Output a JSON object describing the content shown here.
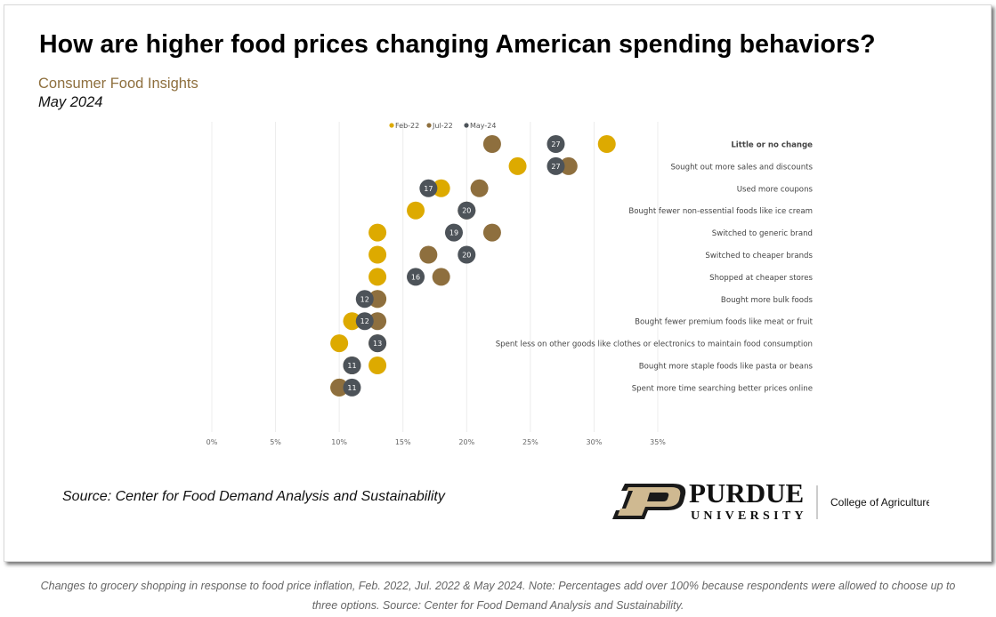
{
  "header": {
    "title": "How are higher food prices changing American spending behaviors?",
    "subtitle": "Consumer Food Insights",
    "date": "May 2024"
  },
  "chart_data": {
    "type": "scatter",
    "orientation": "horizontal-dot-plot",
    "title": "How are higher food prices changing American spending behaviors?",
    "xlabel": "",
    "ylabel": "",
    "xlim": [
      0,
      35
    ],
    "x_ticks": [
      0,
      5,
      10,
      15,
      20,
      25,
      30,
      35
    ],
    "x_tick_labels": [
      "0%",
      "5%",
      "10%",
      "15%",
      "20%",
      "25%",
      "30%",
      "35%"
    ],
    "grid": "vertical",
    "legend_position": "top",
    "categories": [
      "Little or no change",
      "Sought out more sales and discounts",
      "Used more coupons",
      "Bought fewer non-essential foods like ice cream",
      "Switched to generic brand",
      "Switched to cheaper brands",
      "Shopped at cheaper stores",
      "Bought more bulk foods",
      "Bought fewer premium foods like meat or fruit",
      "Spent less on other goods like clothes or electronics to maintain food consumption",
      "Bought more staple foods like pasta or beans",
      "Spent more time searching better prices online"
    ],
    "bold_category_index": 0,
    "series": [
      {
        "name": "Feb-22",
        "color": "#ddaa00",
        "show_labels": false,
        "values": [
          31,
          24,
          18,
          16,
          13,
          13,
          13,
          13,
          11,
          10,
          13,
          10
        ]
      },
      {
        "name": "Jul-22",
        "color": "#8e6f3e",
        "show_labels": false,
        "values": [
          22,
          28,
          21,
          20,
          22,
          17,
          18,
          13,
          13,
          13,
          11,
          10
        ]
      },
      {
        "name": "May-24",
        "color": "#4d5359",
        "show_labels": true,
        "values": [
          27,
          27,
          17,
          20,
          19,
          20,
          16,
          12,
          12,
          13,
          11,
          11
        ]
      }
    ]
  },
  "footer": {
    "source": "Source:  Center for Food Demand Analysis and Sustainability",
    "logo_wordmark": "PURDUE",
    "logo_subtext": "UNIVERSITY",
    "logo_college": "College of Agriculture"
  },
  "caption": {
    "line1": "Changes to grocery shopping in response to food price inflation, Feb. 2022, Jul. 2022 & May 2024. Note: Percentages add over 100% because respondents were allowed to choose up to",
    "line2": "three options. Source: Center for Food Demand Analysis and Sustainability."
  }
}
